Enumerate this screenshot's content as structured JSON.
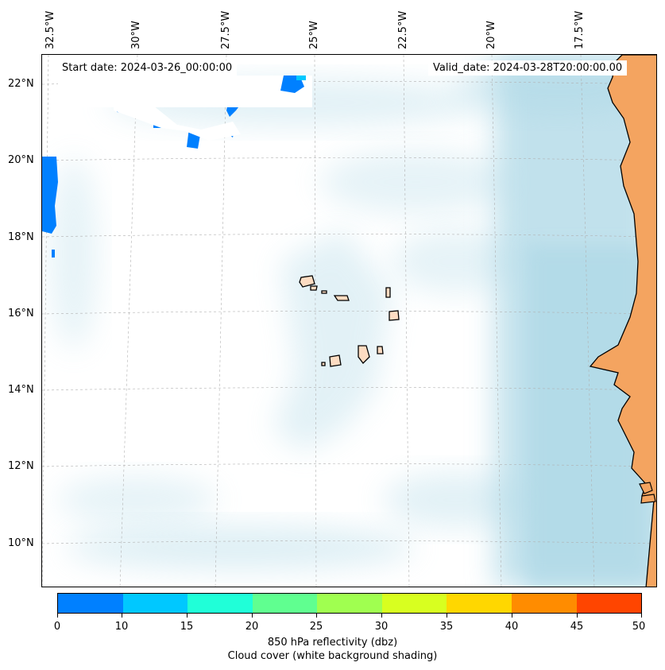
{
  "map": {
    "start_date": "Start date: 2024-03-26_00:00:00",
    "valid_date": "Valid_date: 2024-03-28T20:00:00.00",
    "longitude_labels": [
      "32.5°W",
      "30°W",
      "27.5°W",
      "25°W",
      "22.5°W",
      "20°W",
      "17.5°W"
    ],
    "latitude_labels": [
      "22°N",
      "20°N",
      "18°N",
      "16°N",
      "14°N",
      "12°N",
      "10°N"
    ],
    "land_color": "#f4a460",
    "cloud_color": "#add8e6"
  },
  "colorbar": {
    "ticks": [
      "0",
      "10",
      "15",
      "20",
      "25",
      "30",
      "35",
      "40",
      "45",
      "50"
    ],
    "colors": [
      "#0080ff",
      "#00c8ff",
      "#20ffd8",
      "#60ff90",
      "#a0ff50",
      "#d8ff20",
      "#ffd700",
      "#ff8c00",
      "#ff4500"
    ],
    "label_line1": "850 hPa reflectivity (dbz)",
    "label_line2": "Cloud cover (white background shading)"
  }
}
